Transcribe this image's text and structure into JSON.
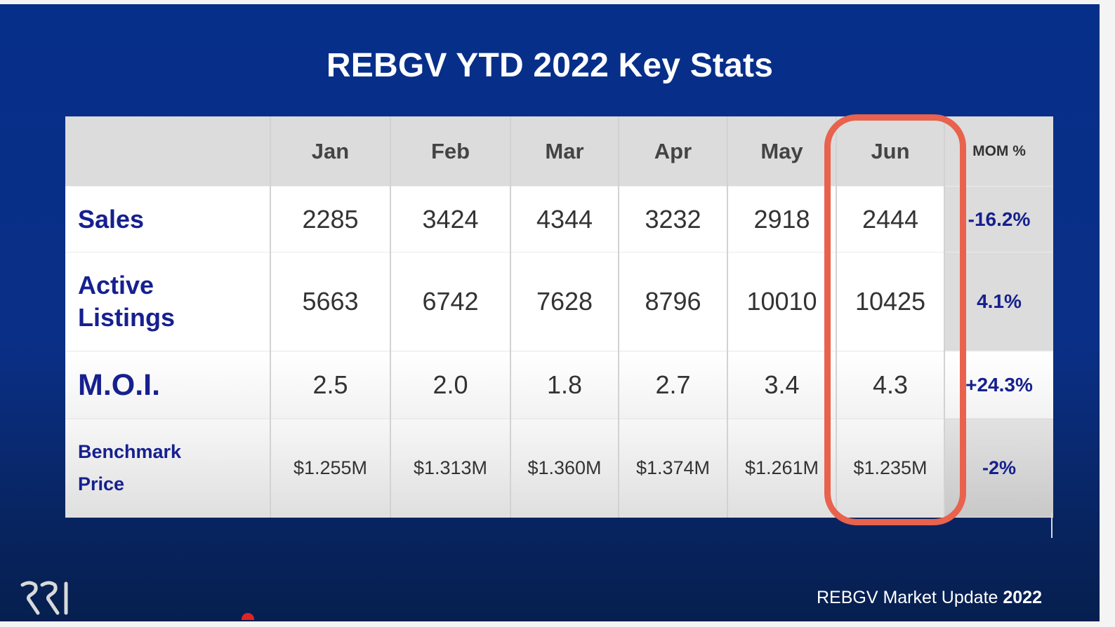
{
  "slide": {
    "title": "REBGV YTD 2022 Key Stats",
    "footer": {
      "text": "REBGV Market Update",
      "year": "2022"
    },
    "logo_text": "RRI",
    "colors": {
      "background": "#0a2f86",
      "label_text": "#16208f",
      "highlight": "#e8624e",
      "header_bg": "#dcdcdc"
    }
  },
  "table": {
    "months": [
      "Jan",
      "Feb",
      "Mar",
      "Apr",
      "May",
      "Jun"
    ],
    "mom_header": "MOM %",
    "highlighted_month": "Jun",
    "rows": [
      {
        "label_line1": "Sales",
        "label_line2": "",
        "values": [
          "2285",
          "3424",
          "4344",
          "3232",
          "2918",
          "2444"
        ],
        "mom": "-16.2%"
      },
      {
        "label_line1": "Active",
        "label_line2": "Listings",
        "values": [
          "5663",
          "6742",
          "7628",
          "8796",
          "10010",
          "10425"
        ],
        "mom": "4.1%"
      },
      {
        "label_line1": "M.O.I.",
        "label_line2": "",
        "values": [
          "2.5",
          "2.0",
          "1.8",
          "2.7",
          "3.4",
          "4.3"
        ],
        "mom": "+24.3%"
      },
      {
        "label_line1": "Benchmark",
        "label_line2": "Price",
        "values": [
          "$1.255M",
          "$1.313M",
          "$1.360M",
          "$1.374M",
          "$1.261M",
          "$1.235M"
        ],
        "mom": "-2%"
      }
    ]
  }
}
